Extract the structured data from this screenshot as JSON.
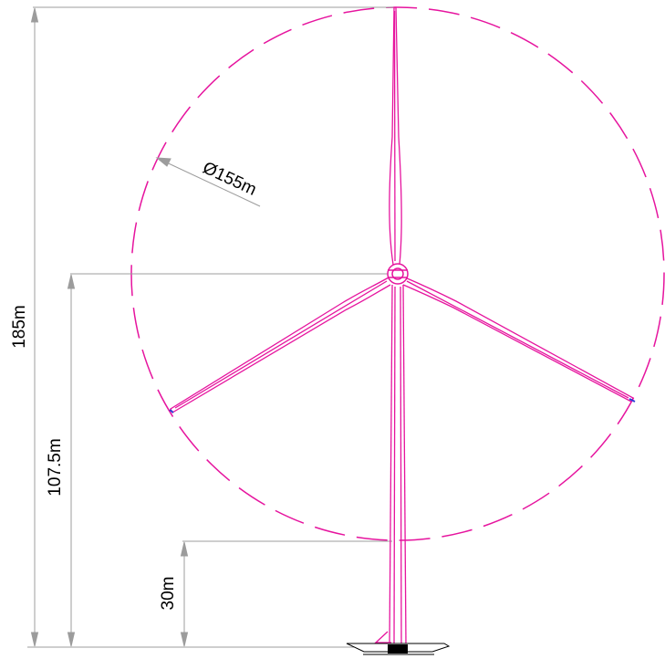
{
  "dimensions": {
    "total_height": "185m",
    "hub_height": "107.5m",
    "clearance": "30m",
    "rotor_diameter": "Ø155m"
  },
  "colors": {
    "turbine": "#e6149e",
    "blade_tip": "#2c39d6",
    "dimension_line": "#9c9c9c",
    "foundation": "#000000",
    "text": "#000000"
  }
}
